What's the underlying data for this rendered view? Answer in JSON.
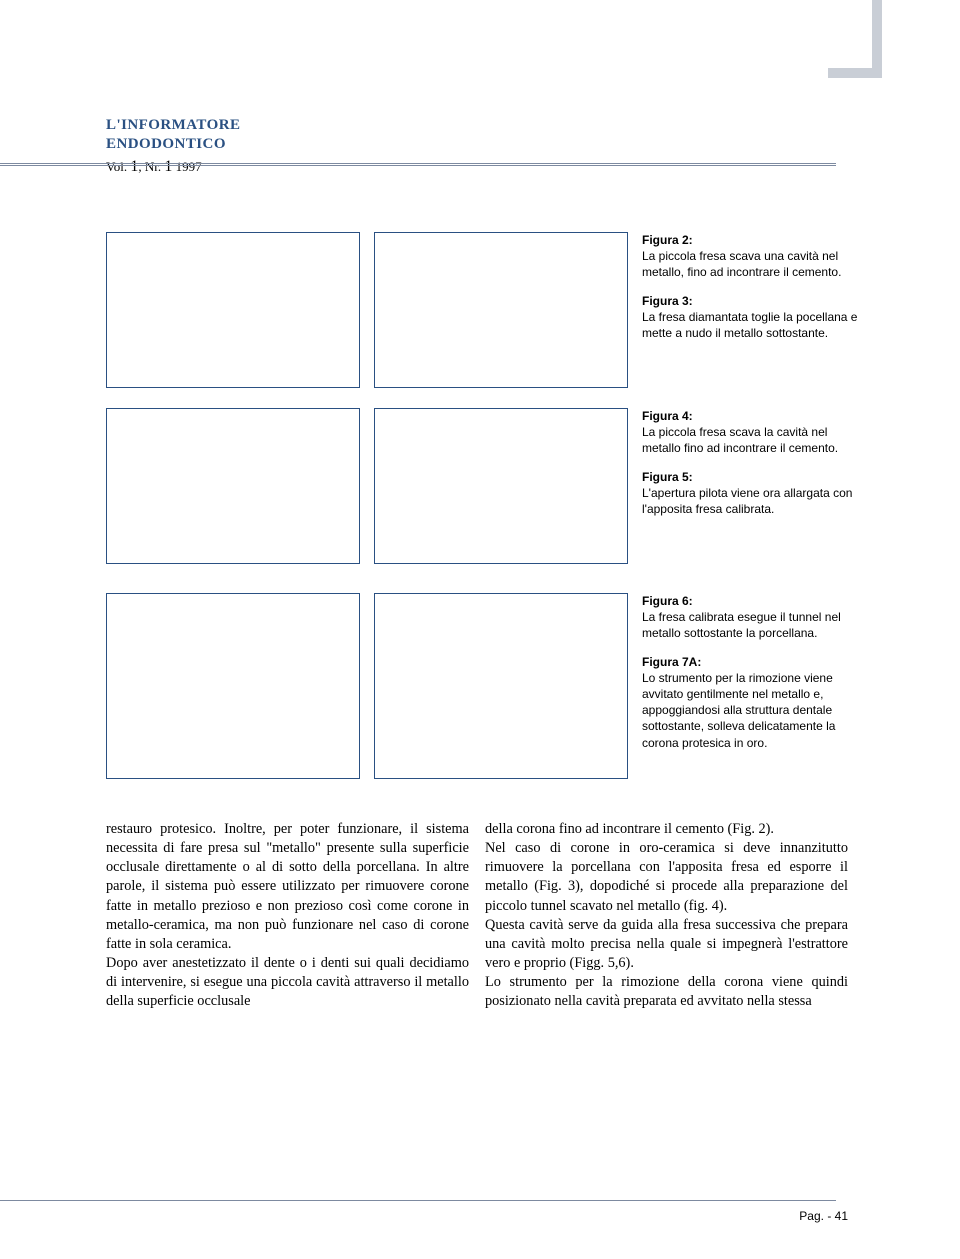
{
  "header": {
    "title_line1": "L'INFORMATORE",
    "title_line2": "ENDODONTICO",
    "vol_label": "Vol.",
    "vol_num": "1",
    "nr_label": "Nr.",
    "nr_num": "1",
    "year": "1997"
  },
  "figures": {
    "f2": {
      "label": "Figura 2:",
      "caption": "La piccola fresa scava una cavità nel metallo, fino ad incontrare il cemento."
    },
    "f3": {
      "label": "Figura 3:",
      "caption": "La fresa diamantata toglie la pocellana e mette a nudo il metallo sottostante."
    },
    "f4": {
      "label": "Figura 4:",
      "caption": "La piccola fresa scava la cavità nel metallo fino ad incontrare il cemento."
    },
    "f5": {
      "label": "Figura 5:",
      "caption": "L'apertura pilota viene ora allargata con l'apposita fresa calibrata."
    },
    "f6": {
      "label": "Figura 6:",
      "caption": "La fresa calibrata esegue il tunnel nel metallo sottostante la porcellana."
    },
    "f7a": {
      "label": "Figura 7A:",
      "caption": "Lo strumento per la rimozione viene avvitato gentilmente nel metallo e, appoggiandosi alla struttura dentale sottostante, solleva delicatamente la corona protesica in oro."
    }
  },
  "body": {
    "col1": "restauro protesico. Inoltre, per poter funzionare, il sistema necessita di fare presa sul \"metallo\" presente sulla superficie occlusale direttamente o al di sotto della porcellana. In altre parole, il sistema può essere utilizzato per rimuovere corone fatte in metallo prezioso e non prezioso così come corone in metallo-ceramica, ma non può funzionare nel caso di corone fatte in sola ceramica.\nDopo aver anestetizzato il dente o i denti sui quali decidiamo di intervenire, si esegue una piccola cavità attraverso il metallo della superficie occlusale",
    "col2": "della corona fino ad incontrare il cemento (Fig. 2).\nNel caso di corone in oro-ceramica si deve innanzitutto rimuovere la porcellana con l'apposita fresa ed esporre il metallo (Fig. 3), dopodiché si procede alla preparazione del piccolo tunnel scavato nel metallo (fig. 4).\nQuesta cavità serve da guida alla fresa successiva che prepara una cavità molto precisa nella quale si impegnerà l'estrattore vero e proprio (Figg. 5,6).\nLo strumento per la rimozione della corona viene quindi posizionato nella cavità preparata ed avvitato nella stessa"
  },
  "footer": {
    "page": "Pag. - 41"
  },
  "colors": {
    "accent": "#2a5082",
    "rule": "#7d8aa0",
    "corner": "#c9ced6"
  }
}
